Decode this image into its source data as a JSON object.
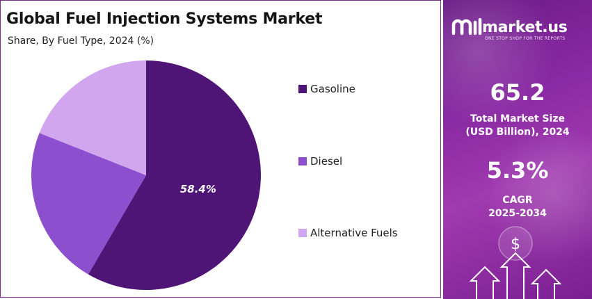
{
  "title": "Global Fuel Injection Systems Market",
  "subtitle": "Share, By Fuel Type, 2024 (%)",
  "chart_data": {
    "type": "pie",
    "title": "Global Fuel Injection Systems Market",
    "subtitle": "Share, By Fuel Type, 2024 (%)",
    "categories": [
      "Gasoline",
      "Diesel",
      "Alternative Fuels"
    ],
    "values": [
      58.4,
      22.6,
      19.0
    ],
    "colors": [
      "#4e1577",
      "#8c4fce",
      "#d1a6ef"
    ],
    "data_labels": [
      "58.4%",
      "",
      ""
    ],
    "legend_position": "right"
  },
  "legend": [
    {
      "label": "Gasoline",
      "color": "#4e1577"
    },
    {
      "label": "Diesel",
      "color": "#8c4fce"
    },
    {
      "label": "Alternative Fuels",
      "color": "#d1a6ef"
    }
  ],
  "brand": {
    "name": "market.us",
    "tagline": "ONE STOP SHOP FOR THE REPORTS",
    "logo_icon": "market-us-logo-icon"
  },
  "stats": [
    {
      "value": "65.2",
      "label_line1": "Total Market Size",
      "label_line2": "(USD Billion), 2024"
    },
    {
      "value": "5.3%",
      "label_line1": "CAGR",
      "label_line2": "2025-2034"
    }
  ],
  "decoration": {
    "dollar_symbol": "$",
    "icons": [
      "dollar-coin-icon",
      "growth-arrows-icon"
    ]
  }
}
